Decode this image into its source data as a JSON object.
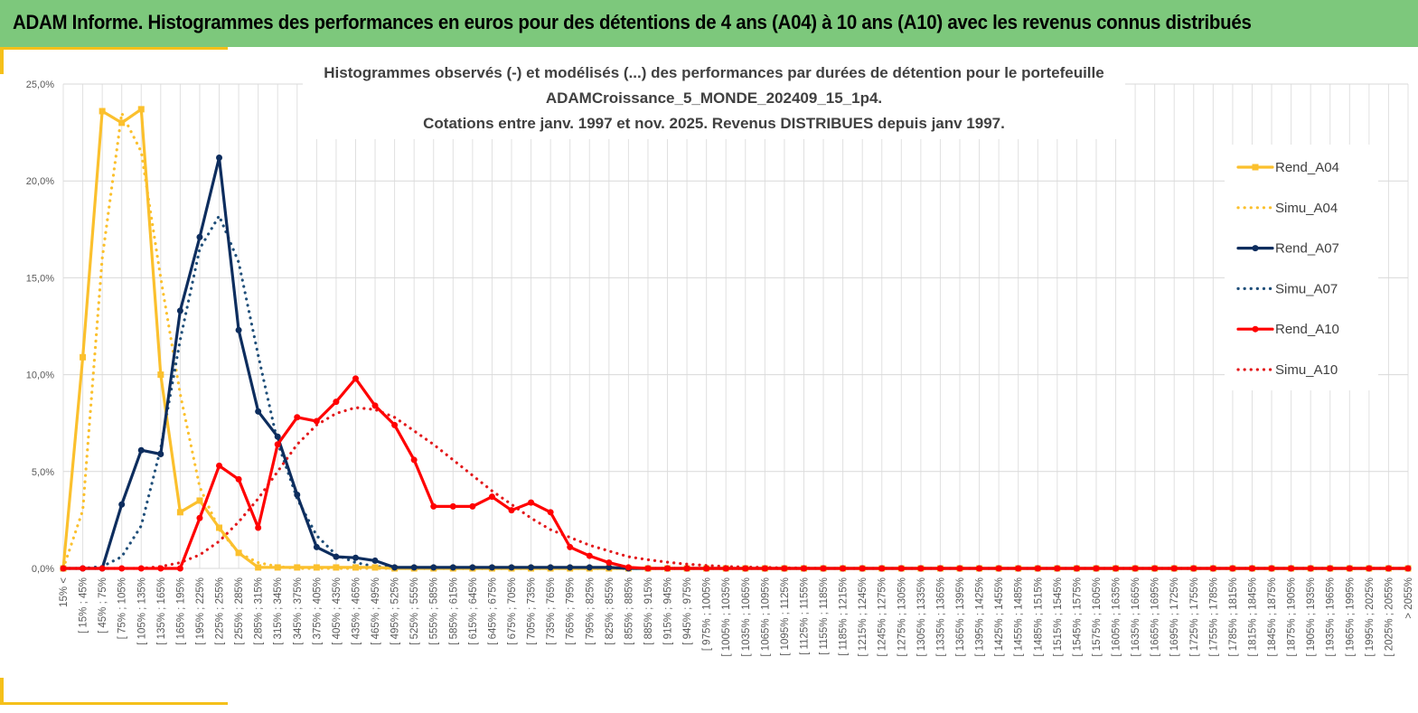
{
  "header": {
    "title": "ADAM Informe. Histogrammes des performances en euros pour des détentions de 4 ans (A04) à 10 ans (A10) avec les revenus connus distribués"
  },
  "colors": {
    "banner": "#7dc87c",
    "accent": "#f5c01a",
    "a04": "#fbc02d",
    "a07": "#0d2d5e",
    "a10": "#ff0000",
    "grid": "#d9d9d9"
  },
  "chart_data": {
    "type": "line",
    "title": [
      "Histogrammes observés (-) et modélisés (...) des performances  par durées de détention pour le portefeuille",
      "ADAMCroissance_5_MONDE_202409_15_1p4.",
      "Cotations entre janv. 1997 et nov. 2025. Revenus DISTRIBUES depuis janv 1997."
    ],
    "ylim": [
      0,
      25
    ],
    "yticks": [
      0,
      5,
      10,
      15,
      20,
      25
    ],
    "ytick_labels": [
      "0,0%",
      "5,0%",
      "10,0%",
      "15,0%",
      "20,0%",
      "25,0%"
    ],
    "categories": [
      "15% <",
      "[ 15% ; 45%",
      "[ 45% ; 75%",
      "[ 75% ; 105%",
      "[ 105% ; 135%",
      "[ 135% ; 165%",
      "[ 165% ; 195%",
      "[ 195% ; 225%",
      "[ 225% ; 255%",
      "[ 255% ; 285%",
      "[ 285% ; 315%",
      "[ 315% ; 345%",
      "[ 345% ; 375%",
      "[ 375% ; 405%",
      "[ 405% ; 435%",
      "[ 435% ; 465%",
      "[ 465% ; 495%",
      "[ 495% ; 525%",
      "[ 525% ; 555%",
      "[ 555% ; 585%",
      "[ 585% ; 615%",
      "[ 615% ; 645%",
      "[ 645% ; 675%",
      "[ 675% ; 705%",
      "[ 705% ; 735%",
      "[ 735% ; 765%",
      "[ 765% ; 795%",
      "[ 795% ; 825%",
      "[ 825% ; 855%",
      "[ 855% ; 885%",
      "[ 885% ; 915%",
      "[ 915% ; 945%",
      "[ 945% ; 975%",
      "[ 975% ; 1005%",
      "[ 1005% ; 1035%",
      "[ 1035% ; 1065%",
      "[ 1065% ; 1095%",
      "[ 1095% ; 1125%",
      "[ 1125% ; 1155%",
      "[ 1155% ; 1185%",
      "[ 1185% ; 1215%",
      "[ 1215% ; 1245%",
      "[ 1245% ; 1275%",
      "[ 1275% ; 1305%",
      "[ 1305% ; 1335%",
      "[ 1335% ; 1365%",
      "[ 1365% ; 1395%",
      "[ 1395% ; 1425%",
      "[ 1425% ; 1455%",
      "[ 1455% ; 1485%",
      "[ 1485% ; 1515%",
      "[ 1515% ; 1545%",
      "[ 1545% ; 1575%",
      "[ 1575% ; 1605%",
      "[ 1605% ; 1635%",
      "[ 1635% ; 1665%",
      "[ 1665% ; 1695%",
      "[ 1695% ; 1725%",
      "[ 1725% ; 1755%",
      "[ 1755% ; 1785%",
      "[ 1785% ; 1815%",
      "[ 1815% ; 1845%",
      "[ 1845% ; 1875%",
      "[ 1875% ; 1905%",
      "[ 1905% ; 1935%",
      "[ 1935% ; 1965%",
      "[ 1965% ; 1995%",
      "[ 1995% ; 2025%",
      "[ 2025% ; 2055%",
      "> 2055%"
    ],
    "series": [
      {
        "name": "Rend_A04",
        "style": "solid",
        "marker": "square",
        "color": "#fbc02d",
        "values": [
          0.0,
          10.9,
          23.6,
          23.0,
          23.7,
          10.0,
          2.9,
          3.5,
          2.1,
          0.8,
          0.05,
          0.05,
          0.05,
          0.05,
          0.05,
          0.05,
          0.05,
          0.0,
          0.0,
          0.0,
          0.0,
          0.0,
          0.0,
          0.0,
          0.0,
          0.0,
          0.0,
          0.0,
          0.0,
          0.0,
          0.0,
          0.0,
          0.0,
          0.0,
          0.0,
          0.0,
          0.0,
          0.0,
          0.0,
          0.0,
          0.0,
          0.0,
          0.0,
          0.0,
          0.0,
          0.0,
          0.0,
          0.0,
          0.0,
          0.0,
          0.0,
          0.0,
          0.0,
          0.0,
          0.0,
          0.0,
          0.0,
          0.0,
          0.0,
          0.0,
          0.0,
          0.0,
          0.0,
          0.0,
          0.0,
          0.0,
          0.0,
          0.0,
          0.0,
          0.0
        ]
      },
      {
        "name": "Simu_A04",
        "style": "dotted",
        "marker": "none",
        "color": "#fbc02d",
        "values": [
          0.0,
          3.0,
          16.0,
          23.5,
          21.5,
          15.0,
          9.0,
          4.2,
          2.0,
          0.8,
          0.3,
          0.1,
          0.0,
          0.0,
          0.0,
          0.0,
          0.0,
          0.0,
          0.0,
          0.0,
          0.0,
          0.0,
          0.0,
          0.0,
          0.0,
          0.0,
          0.0,
          0.0,
          0.0,
          0.0,
          0.0,
          0.0,
          0.0,
          0.0,
          0.0,
          0.0,
          0.0,
          0.0,
          0.0,
          0.0,
          0.0,
          0.0,
          0.0,
          0.0,
          0.0,
          0.0,
          0.0,
          0.0,
          0.0,
          0.0,
          0.0,
          0.0,
          0.0,
          0.0,
          0.0,
          0.0,
          0.0,
          0.0,
          0.0,
          0.0,
          0.0,
          0.0,
          0.0,
          0.0,
          0.0,
          0.0,
          0.0,
          0.0,
          0.0,
          0.0
        ]
      },
      {
        "name": "Rend_A07",
        "style": "solid",
        "marker": "circle",
        "color": "#0d2d5e",
        "values": [
          0.0,
          0.0,
          0.0,
          3.3,
          6.1,
          5.9,
          13.3,
          17.1,
          21.2,
          12.3,
          8.1,
          6.8,
          3.8,
          1.1,
          0.6,
          0.55,
          0.4,
          0.05,
          0.05,
          0.05,
          0.05,
          0.05,
          0.05,
          0.05,
          0.05,
          0.05,
          0.05,
          0.05,
          0.05,
          0.0,
          0.0,
          0.0,
          0.0,
          0.0,
          0.0,
          0.0,
          0.0,
          0.0,
          0.0,
          0.0,
          0.0,
          0.0,
          0.0,
          0.0,
          0.0,
          0.0,
          0.0,
          0.0,
          0.0,
          0.0,
          0.0,
          0.0,
          0.0,
          0.0,
          0.0,
          0.0,
          0.0,
          0.0,
          0.0,
          0.0,
          0.0,
          0.0,
          0.0,
          0.0,
          0.0,
          0.0,
          0.0,
          0.0,
          0.0,
          0.0
        ]
      },
      {
        "name": "Simu_A07",
        "style": "dotted",
        "marker": "none",
        "color": "#1f4e79",
        "values": [
          0.0,
          0.0,
          0.1,
          0.6,
          2.2,
          6.2,
          11.8,
          16.5,
          18.2,
          15.8,
          11.0,
          6.5,
          3.6,
          1.7,
          0.7,
          0.3,
          0.1,
          0.05,
          0.0,
          0.0,
          0.0,
          0.0,
          0.0,
          0.0,
          0.0,
          0.0,
          0.0,
          0.0,
          0.0,
          0.0,
          0.0,
          0.0,
          0.0,
          0.0,
          0.0,
          0.0,
          0.0,
          0.0,
          0.0,
          0.0,
          0.0,
          0.0,
          0.0,
          0.0,
          0.0,
          0.0,
          0.0,
          0.0,
          0.0,
          0.0,
          0.0,
          0.0,
          0.0,
          0.0,
          0.0,
          0.0,
          0.0,
          0.0,
          0.0,
          0.0,
          0.0,
          0.0,
          0.0,
          0.0,
          0.0,
          0.0,
          0.0,
          0.0,
          0.0,
          0.0
        ]
      },
      {
        "name": "Rend_A10",
        "style": "solid",
        "marker": "circle",
        "color": "#ff0000",
        "values": [
          0.0,
          0.0,
          0.0,
          0.0,
          0.0,
          0.0,
          0.0,
          2.6,
          5.3,
          4.6,
          2.1,
          6.4,
          7.8,
          7.6,
          8.6,
          9.8,
          8.4,
          7.4,
          5.6,
          3.2,
          3.2,
          3.2,
          3.7,
          3.0,
          3.4,
          2.9,
          1.1,
          0.65,
          0.3,
          0.05,
          0.0,
          0.0,
          0.0,
          0.0,
          0.0,
          0.0,
          0.0,
          0.0,
          0.0,
          0.0,
          0.0,
          0.0,
          0.0,
          0.0,
          0.0,
          0.0,
          0.0,
          0.0,
          0.0,
          0.0,
          0.0,
          0.0,
          0.0,
          0.0,
          0.0,
          0.0,
          0.0,
          0.0,
          0.0,
          0.0,
          0.0,
          0.0,
          0.0,
          0.0,
          0.0,
          0.0,
          0.0,
          0.0,
          0.0,
          0.0
        ]
      },
      {
        "name": "Simu_A10",
        "style": "dotted",
        "marker": "none",
        "color": "#e31a1c",
        "values": [
          0.0,
          0.0,
          0.0,
          0.0,
          0.0,
          0.1,
          0.3,
          0.7,
          1.4,
          2.4,
          3.6,
          5.0,
          6.4,
          7.4,
          8.0,
          8.3,
          8.2,
          7.8,
          7.1,
          6.4,
          5.6,
          4.8,
          4.0,
          3.3,
          2.6,
          2.0,
          1.6,
          1.2,
          0.9,
          0.6,
          0.45,
          0.32,
          0.22,
          0.15,
          0.1,
          0.07,
          0.05,
          0.03,
          0.02,
          0.0,
          0.0,
          0.0,
          0.0,
          0.0,
          0.0,
          0.0,
          0.0,
          0.0,
          0.0,
          0.0,
          0.0,
          0.0,
          0.0,
          0.0,
          0.0,
          0.0,
          0.0,
          0.0,
          0.0,
          0.0,
          0.0,
          0.0,
          0.0,
          0.0,
          0.0,
          0.0,
          0.0,
          0.0,
          0.0,
          0.0
        ]
      }
    ],
    "legend": {
      "position": "right",
      "entries": [
        "Rend_A04",
        "Simu_A04",
        "Rend_A07",
        "Simu_A07",
        "Rend_A10",
        "Simu_A10"
      ]
    },
    "grid": true
  }
}
